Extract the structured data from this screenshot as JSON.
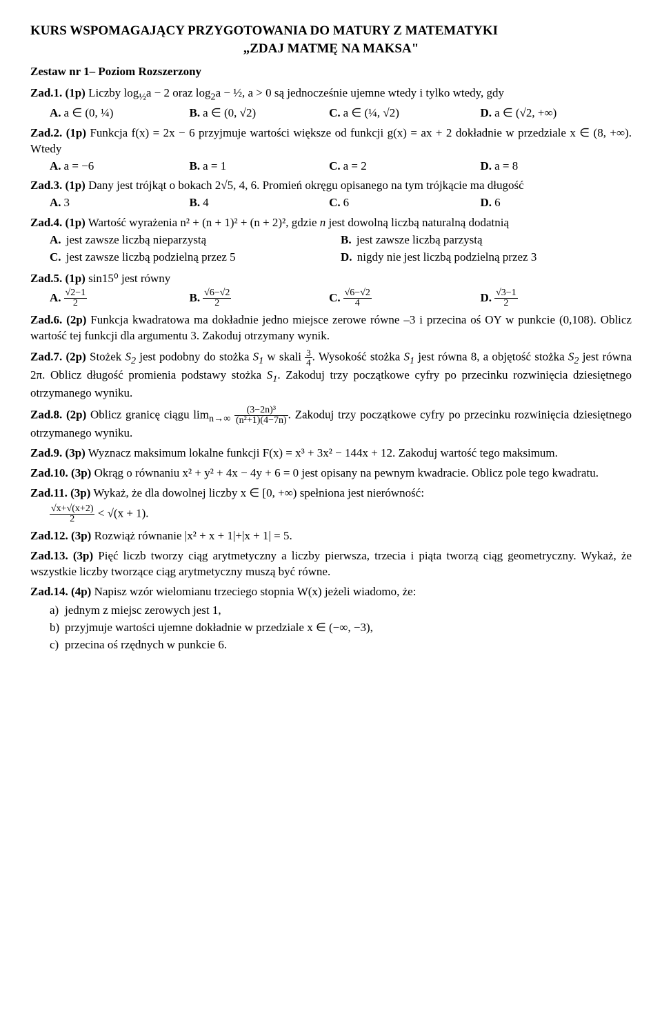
{
  "title1": "KURS WSPOMAGAJĄCY PRZYGOTOWANIA DO MATURY Z MATEMATYKI",
  "title2": "„ZDAJ MATMĘ NA MAKSA\"",
  "subset": "Zestaw nr 1– Poziom Rozszerzony",
  "z1": {
    "label": "Zad.1. (1p)",
    "t1": " Liczby ",
    "e1_html": "log<sub>½</sub>a − 2",
    "t2": " oraz ",
    "e2_html": "log<sub>2</sub>a − ½, a > 0",
    "t3": " są jednocześnie ujemne wtedy i tylko wtedy, gdy",
    "A_html": "a ∈ (0, ¼)",
    "B_html": "a ∈ (0, √2)",
    "C_html": "a ∈ (¼, √2)",
    "D_html": "a ∈ (√2, +∞)",
    "lA": "A.",
    "lB": "B.",
    "lC": "C.",
    "lD": "D."
  },
  "z2": {
    "label": "Zad.2. (1p)",
    "t1": " Funkcja ",
    "e1_html": "f(x) = 2x − 6",
    "t2": " przyjmuje wartości większe od funkcji ",
    "e2_html": "g(x) = ax + 2",
    "t3": " dokładnie w przedziale ",
    "e3_html": "x ∈ (8, +∞).",
    "t4": " Wtedy",
    "A_html": "a = −6",
    "B_html": "a = 1",
    "C_html": "a = 2",
    "D_html": "a = 8",
    "lA": "A.",
    "lB": "B.",
    "lC": "C.",
    "lD": "D."
  },
  "z3": {
    "label": "Zad.3. (1p)",
    "t1": " Dany jest trójkąt o bokach ",
    "e1_html": "2√5, 4, 6.",
    "t2": " Promień okręgu opisanego na tym trójkącie ma długość",
    "A_html": "3",
    "B_html": "4",
    "C_html": "6",
    "D_html": "6",
    "lA": "A.",
    "lB": "B.",
    "lC": "C.",
    "lD": "D."
  },
  "z4": {
    "label": "Zad.4. (1p)",
    "t1": " Wartość wyrażenia ",
    "e1_html": "n² + (n + 1)² + (n + 2)²",
    "t2": ", gdzie ",
    "n": "n",
    "t3": " jest dowolną liczbą naturalną dodatnią",
    "A": "jest zawsze liczbą nieparzystą",
    "B": "jest zawsze liczbą parzystą",
    "C": "jest zawsze liczbą podzielną przez 5",
    "D": "nigdy nie jest liczbą podzielną przez 3",
    "lA": "A.",
    "lB": "B.",
    "lC": "C.",
    "lD": "D."
  },
  "z5": {
    "label": "Zad.5. (1p)",
    "t1_html": " sin15⁰ jest równy",
    "A_num": "√2−1",
    "A_den": "2",
    "B_num": "√6−√2",
    "B_den": "2",
    "C_num": "√6−√2",
    "C_den": "4",
    "D_num": "√3−1",
    "D_den": "2",
    "lA": "A.",
    "lB": "B.",
    "lC": "C.",
    "lD": "D."
  },
  "z6": {
    "label": "Zad.6. (2p)",
    "t1": " Funkcja kwadratowa ma dokładnie jedno miejsce zerowe równe –3 i przecina oś OY w punkcie ",
    "e1_html": "(0,108)",
    "t2": ". Oblicz wartość tej funkcji dla argumentu 3. Zakoduj otrzymany wynik."
  },
  "z7": {
    "label": "Zad.7. (2p)",
    "t1": " Stożek ",
    "s2": "S",
    "s2sub": "2",
    "t2": " jest podobny do stożka ",
    "s1": "S",
    "s1sub": "1",
    "t3": " w skali ",
    "frac_num": "3",
    "frac_den": "4",
    "t4": ". Wysokość stożka ",
    "t5": " jest równa 8, a objętość stożka ",
    "t6": " jest równa ",
    "e2_html": "2π",
    "t7": ". Oblicz długość promienia podstawy stożka ",
    "t8": ". Zakoduj trzy początkowe cyfry po przecinku rozwinięcia dziesiętnego otrzymanego wyniku."
  },
  "z8": {
    "label": "Zad.8. (2p)",
    "t1": " Oblicz granicę ciągu ",
    "lim": "lim",
    "sub": "n→∞",
    "num": "(3−2n)³",
    "den": "(n²+1)(4−7n)",
    "t2": ". Zakoduj trzy początkowe cyfry po przecinku rozwinięcia dziesiętnego otrzymanego wyniku."
  },
  "z9": {
    "label": "Zad.9. (3p)",
    "t1": " Wyznacz maksimum lokalne funkcji ",
    "e1_html": "F(x) = x³ + 3x² − 144x + 12.",
    "t2": " Zakoduj wartość tego maksimum."
  },
  "z10": {
    "label": "Zad.10. (3p)",
    "t1": " Okrąg o równaniu ",
    "e1_html": "x² + y² + 4x − 4y + 6 = 0",
    "t2": " jest opisany na pewnym kwadracie. Oblicz pole tego kwadratu."
  },
  "z11": {
    "label": "Zad.11. (3p)",
    "t1": " Wykaż, że dla dowolnej liczby ",
    "e1_html": "x ∈ [0, +∞)",
    "t2": " spełniona jest nierówność:",
    "ineq_num": "√x+√(x+2)",
    "ineq_den": "2",
    "ineq_right": " < √(x + 1)."
  },
  "z12": {
    "label": "Zad.12. (3p)",
    "t1": " Rozwiąż równanie ",
    "e1_html": "|x² + x + 1|+|x + 1| = 5."
  },
  "z13": {
    "label": "Zad.13. (3p)",
    "t1": " Pięć liczb tworzy ciąg arytmetyczny a liczby pierwsza, trzecia i piąta tworzą ciąg geometryczny. Wykaż, że wszystkie liczby tworzące ciąg arytmetyczny muszą być równe."
  },
  "z14": {
    "label": "Zad.14. (4p)",
    "t1": " Napisz wzór wielomianu trzeciego stopnia ",
    "e1_html": "W(x)",
    "t2": " jeżeli wiadomo, że:",
    "a": "jednym z miejsc zerowych jest 1,",
    "la": "a)",
    "b_pre": "przyjmuje wartości ujemne dokładnie w przedziale ",
    "b_expr": "x ∈ (−∞, −3)",
    "b_post": ",",
    "lb": "b)",
    "c": "przecina oś rzędnych w punkcie 6.",
    "lc": "c)"
  }
}
